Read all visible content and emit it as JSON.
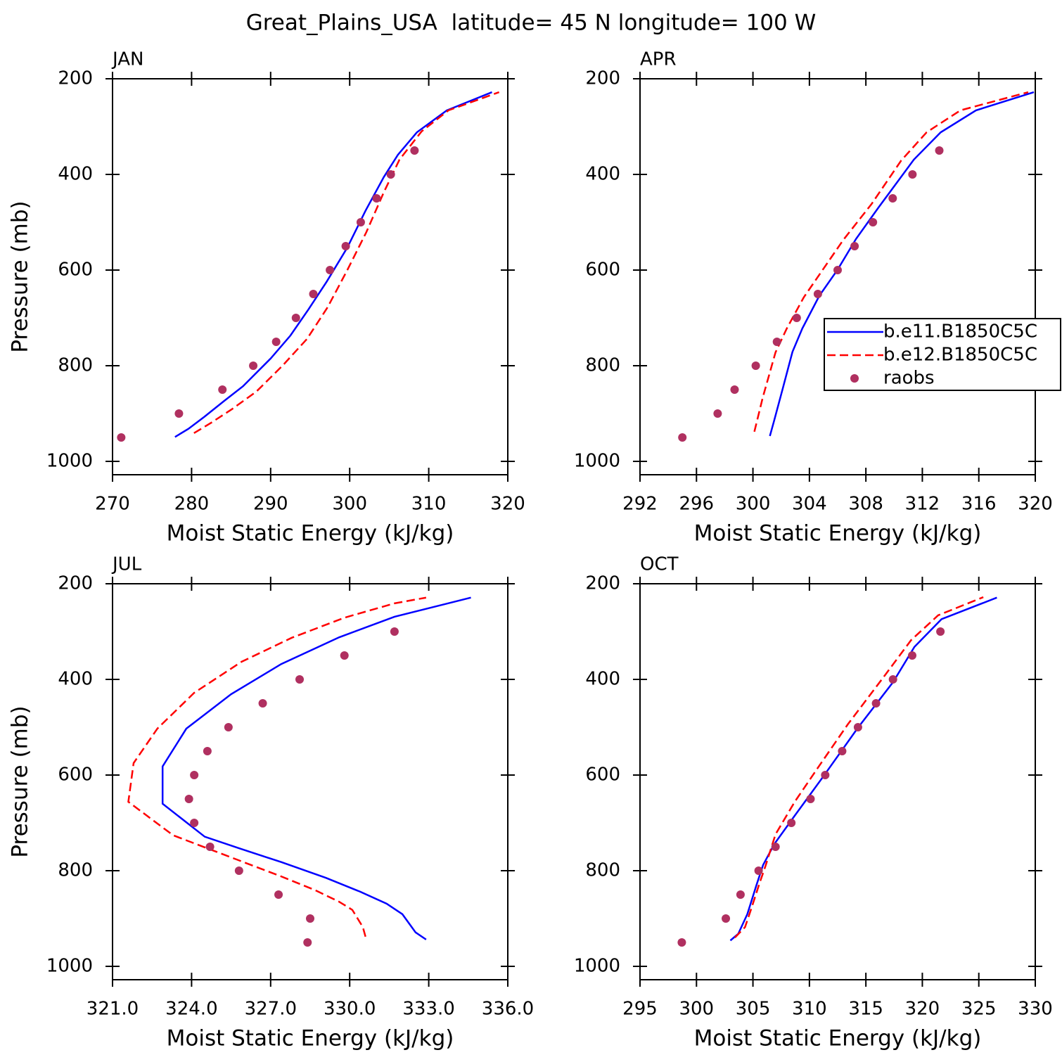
{
  "title": "Great_Plains_USA  latitude= 45 N longitude= 100 W",
  "chart_data": [
    {
      "type": "line",
      "title": "JAN",
      "xlabel": "Moist Static Energy (kJ/kg)",
      "ylabel": "Pressure (mb)",
      "xlim": [
        270,
        320
      ],
      "xticks": [
        270,
        280,
        290,
        300,
        310,
        320
      ],
      "ylim": [
        1028,
        200
      ],
      "yticks": [
        200,
        400,
        600,
        800,
        1000
      ],
      "series": [
        {
          "style": "line",
          "color": "#0000ff",
          "dash": false,
          "x": [
            277.9,
            279.6,
            281.6,
            284.1,
            286.5,
            290,
            292.5,
            294.8,
            297.1,
            299.7,
            302,
            304.3,
            306.1,
            308.5,
            312.3,
            318
          ],
          "y": [
            949,
            932,
            907,
            874,
            843,
            785,
            737,
            682,
            624,
            553,
            476,
            406,
            359,
            312,
            266,
            228
          ]
        },
        {
          "style": "line",
          "color": "#ff0000",
          "dash": true,
          "x": [
            280.3,
            282.5,
            285.1,
            288.2,
            291.5,
            294.6,
            297.2,
            299.7,
            302.1,
            304.3,
            306.3,
            309.1,
            312.5,
            318.9
          ],
          "y": [
            941,
            919,
            891,
            854,
            800,
            744,
            678,
            600,
            521,
            438,
            369,
            310,
            266,
            228
          ]
        },
        {
          "style": "markers",
          "color": "#b03060",
          "x": [
            271.1,
            278.4,
            283.9,
            287.8,
            290.7,
            293.2,
            295.4,
            297.5,
            299.5,
            301.4,
            303.4,
            305.2,
            308.2
          ],
          "y": [
            950,
            900,
            850,
            800,
            750,
            700,
            650,
            600,
            550,
            500,
            450,
            400,
            350
          ]
        }
      ]
    },
    {
      "type": "line",
      "title": "APR",
      "xlabel": "Moist Static Energy (kJ/kg)",
      "legend": "right",
      "xlim": [
        292,
        320
      ],
      "xticks": [
        292,
        296,
        300,
        304,
        308,
        312,
        316,
        320
      ],
      "ylim": [
        1028,
        200
      ],
      "yticks": [
        200,
        400,
        600,
        800,
        1000
      ],
      "series": [
        {
          "name": "b.e11.B1850C5C",
          "style": "line",
          "color": "#0000ff",
          "dash": false,
          "x": [
            301.2,
            301.5,
            302.1,
            302.8,
            303.5,
            304.7,
            306,
            307.3,
            308.9,
            311.4,
            313.3,
            315.8,
            319.9
          ],
          "y": [
            947,
            915,
            849,
            771,
            722,
            654,
            599,
            535,
            469,
            369,
            312,
            266,
            228
          ]
        },
        {
          "name": "b.e12.B1850C5C",
          "style": "line",
          "color": "#ff0000",
          "dash": true,
          "x": [
            300.1,
            300.7,
            301.6,
            302.4,
            303.6,
            305,
            306.4,
            308.4,
            310.5,
            312.3,
            314.7,
            319.5
          ],
          "y": [
            938,
            866,
            772,
            722,
            657,
            597,
            537,
            462,
            371,
            312,
            266,
            228
          ]
        },
        {
          "name": "raobs",
          "style": "markers",
          "color": "#b03060",
          "x": [
            295,
            297.5,
            298.7,
            300.2,
            301.7,
            303.1,
            304.6,
            306,
            307.2,
            308.5,
            309.9,
            311.3,
            313.2
          ],
          "y": [
            950,
            900,
            850,
            800,
            750,
            700,
            650,
            600,
            550,
            500,
            450,
            400,
            350
          ]
        }
      ]
    },
    {
      "type": "line",
      "title": "JUL",
      "xlabel": "Moist Static Energy (kJ/kg)",
      "ylabel": "Pressure (mb)",
      "xlim": [
        321,
        336
      ],
      "xticks": [
        {
          "value": 321,
          "label": "321.0"
        },
        {
          "value": 324,
          "label": "324.0"
        },
        {
          "value": 327,
          "label": "327.0"
        },
        {
          "value": 330,
          "label": "330.0"
        },
        {
          "value": 333,
          "label": "333.0"
        },
        {
          "value": 336,
          "label": "336.0"
        }
      ],
      "ylim": [
        1028,
        200
      ],
      "yticks": [
        200,
        400,
        600,
        800,
        1000
      ],
      "series": [
        {
          "style": "line",
          "color": "#0000ff",
          "dash": false,
          "x": [
            332.9,
            332.5,
            332,
            331.4,
            330.4,
            329.1,
            327.4,
            325.8,
            324.5,
            322.9,
            322.9,
            323.8,
            325.5,
            327.4,
            329.6,
            331.7,
            334.6
          ],
          "y": [
            944,
            929,
            891,
            869,
            844,
            815,
            782,
            753,
            729,
            660,
            582,
            503,
            431,
            368,
            312,
            269,
            229
          ]
        },
        {
          "style": "line",
          "color": "#ff0000",
          "dash": true,
          "x": [
            330.6,
            330.5,
            330.1,
            329.6,
            328.7,
            327.4,
            325.3,
            323.3,
            321.6,
            321.8,
            322.7,
            324.1,
            325.9,
            327.8,
            329.8,
            331.7,
            332.9
          ],
          "y": [
            938,
            918,
            882,
            865,
            841,
            812,
            768,
            726,
            656,
            575,
            503,
            428,
            363,
            313,
            271,
            241,
            229
          ]
        },
        {
          "style": "markers",
          "color": "#b03060",
          "x": [
            328.4,
            328.5,
            327.3,
            325.8,
            324.7,
            324.1,
            323.9,
            324.1,
            324.6,
            325.4,
            326.7,
            328.1,
            329.8,
            331.7
          ],
          "y": [
            950,
            900,
            850,
            800,
            750,
            700,
            650,
            600,
            550,
            500,
            450,
            400,
            350,
            300
          ]
        }
      ]
    },
    {
      "type": "line",
      "title": "OCT",
      "xlabel": "Moist Static Energy (kJ/kg)",
      "xlim": [
        295,
        330
      ],
      "xticks": [
        295,
        300,
        305,
        310,
        315,
        320,
        325,
        330
      ],
      "ylim": [
        1028,
        200
      ],
      "yticks": [
        200,
        400,
        600,
        800,
        1000
      ],
      "series": [
        {
          "style": "line",
          "color": "#0000ff",
          "dash": false,
          "x": [
            303,
            303.7,
            304.5,
            305.3,
            305.9,
            306.9,
            308.7,
            311.2,
            314.3,
            317.4,
            319.3,
            321.7,
            326.6
          ],
          "y": [
            946,
            932,
            891,
            831,
            788,
            744,
            685,
            604,
            501,
            406,
            332,
            274,
            229
          ]
        },
        {
          "style": "line",
          "color": "#ff0000",
          "dash": true,
          "x": [
            303.4,
            304.3,
            304.9,
            305.6,
            306.1,
            307,
            308.7,
            310.6,
            313.4,
            316.7,
            319,
            321.4,
            325.4
          ],
          "y": [
            940,
            918,
            876,
            825,
            791,
            724,
            656,
            590,
            494,
            391,
            318,
            266,
            228
          ]
        },
        {
          "style": "markers",
          "color": "#b03060",
          "x": [
            298.7,
            302.6,
            303.9,
            305.5,
            307,
            308.4,
            310.1,
            311.4,
            312.9,
            314.3,
            315.9,
            317.4,
            319.1,
            321.6
          ],
          "y": [
            950,
            900,
            850,
            800,
            750,
            700,
            650,
            600,
            550,
            500,
            450,
            400,
            350,
            300
          ]
        }
      ]
    }
  ]
}
